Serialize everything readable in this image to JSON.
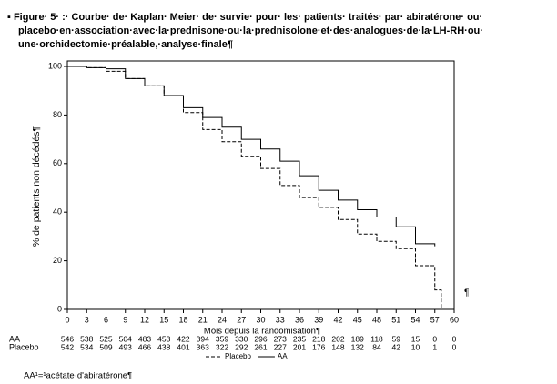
{
  "header": {
    "caption_lines": [
      "▪ Figure· 5· :· Courbe· de· Kaplan· Meier· de· survie· pour· les· patients· traités· par· abiratérone· ou·",
      "placebo·en·association·avec·la·prednisone·ou·la·prednisolone·et·des·analogues·de·la·LH-RH·ou·",
      "une·orchidectomie·préalable,·analyse·finale¶"
    ]
  },
  "chart_data": {
    "type": "line",
    "step": true,
    "xlabel": "Mois depuis la randomisation¶",
    "ylabel": "% de patients non décédés¶",
    "x": [
      0,
      3,
      6,
      9,
      12,
      15,
      18,
      21,
      24,
      27,
      30,
      33,
      36,
      39,
      42,
      45,
      48,
      51,
      54,
      57,
      58
    ],
    "series": [
      {
        "name": "Placebo",
        "color": "#000000",
        "linestyle": "dashed",
        "values": [
          100,
          99.5,
          98,
          95,
          92,
          88,
          81,
          74,
          69,
          63,
          58,
          51,
          46,
          42,
          37,
          31,
          28,
          25,
          18,
          8,
          0
        ]
      },
      {
        "name": "AA",
        "color": "#000000",
        "linestyle": "solid",
        "values": [
          100,
          99.5,
          99,
          95,
          92,
          88,
          83,
          79,
          75,
          70,
          66,
          61,
          55,
          49,
          45,
          41,
          38,
          34,
          27,
          26,
          null
        ]
      }
    ],
    "xlim": [
      0,
      60
    ],
    "ylim": [
      0,
      100
    ],
    "xticks": [
      0,
      3,
      6,
      9,
      12,
      15,
      18,
      21,
      24,
      27,
      30,
      33,
      36,
      39,
      42,
      45,
      48,
      51,
      54,
      57,
      60
    ],
    "yticks": [
      0,
      20,
      40,
      60,
      80,
      100
    ]
  },
  "risk_table": {
    "rows": [
      {
        "label": "AA",
        "values": [
          "546",
          "538",
          "525",
          "504",
          "483",
          "453",
          "422",
          "394",
          "359",
          "330",
          "296",
          "273",
          "235",
          "218",
          "202",
          "189",
          "118",
          "59",
          "15",
          "0",
          "0"
        ]
      },
      {
        "label": "Placebo",
        "values": [
          "542",
          "534",
          "509",
          "493",
          "466",
          "438",
          "401",
          "363",
          "322",
          "292",
          "261",
          "227",
          "201",
          "176",
          "148",
          "132",
          "84",
          "42",
          "10",
          "1",
          "0"
        ]
      }
    ]
  },
  "side_mark": "¶",
  "footnote": "AA¹=¹acétate·d'abiratérone¶"
}
